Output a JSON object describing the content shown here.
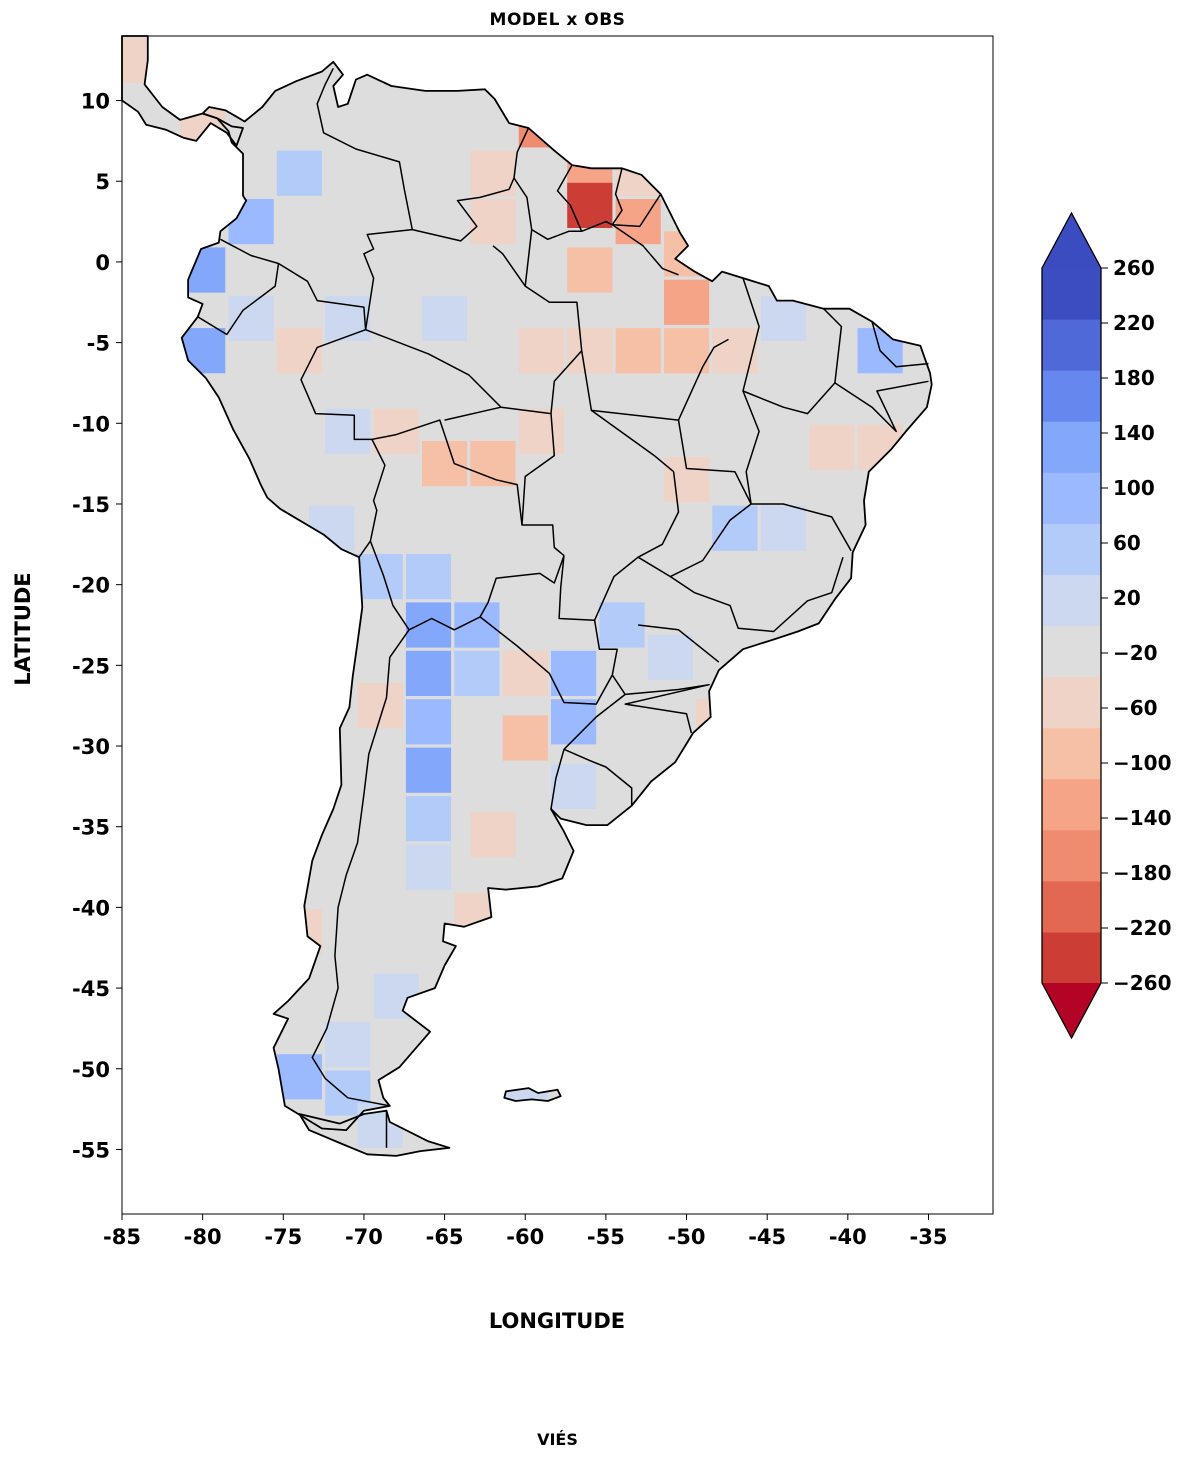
{
  "title": "MODEL x OBS",
  "footer": "VIÉS",
  "chart_data": {
    "type": "heatmap",
    "title": "MODEL x OBS",
    "xlabel": "LONGITUDE",
    "ylabel": "LATITUDE",
    "xlim": [
      -85,
      -31
    ],
    "ylim": [
      -59,
      14
    ],
    "xticks": [
      "-85",
      "-80",
      "-75",
      "-70",
      "-65",
      "-60",
      "-55",
      "-50",
      "-45",
      "-40",
      "-35"
    ],
    "yticks": [
      "10",
      "5",
      "0",
      "-5",
      "-10",
      "-15",
      "-20",
      "-25",
      "-30",
      "-35",
      "-40",
      "-45",
      "-50",
      "-55"
    ],
    "colorbar": {
      "levels": [
        -260,
        -220,
        -180,
        -140,
        -100,
        -60,
        -20,
        20,
        60,
        100,
        140,
        180,
        220,
        260
      ],
      "tick_labels": [
        "−260",
        "−220",
        "−180",
        "−140",
        "−100",
        "−60",
        "−20",
        "20",
        "60",
        "100",
        "140",
        "180",
        "220",
        "260"
      ],
      "colors": [
        "#cc3e35",
        "#e26851",
        "#ef8b6e",
        "#f6a488",
        "#f5c0a6",
        "#eed3c6",
        "#dddddd",
        "#cbd8ef",
        "#b2cbf9",
        "#9ab9ff",
        "#83a7fb",
        "#6687ed",
        "#4f69d9",
        "#3c4dc2"
      ],
      "under_color": "#b40426",
      "over_color": "#3b4cc0",
      "extend": "both"
    },
    "grid_cells": [
      {
        "lon": -68,
        "lat": 11.5,
        "v": 0
      },
      {
        "lon": -65,
        "lat": 11.5,
        "v": 0
      },
      {
        "lon": -62,
        "lat": 11.5,
        "v": 0
      },
      {
        "lon": -59,
        "lat": 11.5,
        "v": 0
      },
      {
        "lon": -59,
        "lat": 8.5,
        "v": -160
      },
      {
        "lon": -56,
        "lat": 5.5,
        "v": -140
      },
      {
        "lon": -53,
        "lat": 5.5,
        "v": -60
      },
      {
        "lon": -56,
        "lat": 3.5,
        "v": -230
      },
      {
        "lon": -53,
        "lat": 2.5,
        "v": -120
      },
      {
        "lon": -50,
        "lat": 0.5,
        "v": -100
      },
      {
        "lon": -50,
        "lat": -2.5,
        "v": -140
      },
      {
        "lon": -47,
        "lat": -2.5,
        "v": 0
      },
      {
        "lon": -44,
        "lat": -3.5,
        "v": 40
      },
      {
        "lon": -41,
        "lat": -3.5,
        "v": 0
      },
      {
        "lon": -38,
        "lat": -5.5,
        "v": 100
      },
      {
        "lon": -56,
        "lat": -0.5,
        "v": -80
      },
      {
        "lon": -62,
        "lat": 5.5,
        "v": -60
      },
      {
        "lon": -62,
        "lat": 2.5,
        "v": -40
      },
      {
        "lon": -65,
        "lat": 5.5,
        "v": 0
      },
      {
        "lon": -68,
        "lat": 5.5,
        "v": 0
      },
      {
        "lon": -71,
        "lat": 5.5,
        "v": 0
      },
      {
        "lon": -74,
        "lat": 5.5,
        "v": 80
      },
      {
        "lon": -77,
        "lat": 2.5,
        "v": 110
      },
      {
        "lon": -80,
        "lat": -0.5,
        "v": 140
      },
      {
        "lon": -80,
        "lat": -5.5,
        "v": 160
      },
      {
        "lon": -77,
        "lat": -3.5,
        "v": 40
      },
      {
        "lon": -74,
        "lat": -5.5,
        "v": -40
      },
      {
        "lon": -71,
        "lat": -3.5,
        "v": 40
      },
      {
        "lon": -68,
        "lat": -5.5,
        "v": 0
      },
      {
        "lon": -65,
        "lat": -3.5,
        "v": 40
      },
      {
        "lon": -62,
        "lat": -5.5,
        "v": 0
      },
      {
        "lon": -59,
        "lat": -5.5,
        "v": -40
      },
      {
        "lon": -56,
        "lat": -5.5,
        "v": -40
      },
      {
        "lon": -53,
        "lat": -5.5,
        "v": -80
      },
      {
        "lon": -50,
        "lat": -5.5,
        "v": -80
      },
      {
        "lon": -47,
        "lat": -5.5,
        "v": -40
      },
      {
        "lon": -74,
        "lat": -10.5,
        "v": 0
      },
      {
        "lon": -71,
        "lat": -10.5,
        "v": 40
      },
      {
        "lon": -68,
        "lat": -10.5,
        "v": -40
      },
      {
        "lon": -65,
        "lat": -12.5,
        "v": -80
      },
      {
        "lon": -62,
        "lat": -12.5,
        "v": -80
      },
      {
        "lon": -59,
        "lat": -10.5,
        "v": -40
      },
      {
        "lon": -56,
        "lat": -10.5,
        "v": 0
      },
      {
        "lon": -53,
        "lat": -10.5,
        "v": 0
      },
      {
        "lon": -50,
        "lat": -10.5,
        "v": 0
      },
      {
        "lon": -47,
        "lat": -10.5,
        "v": 0
      },
      {
        "lon": -44,
        "lat": -10.5,
        "v": 0
      },
      {
        "lon": -41,
        "lat": -11.5,
        "v": -40
      },
      {
        "lon": -38,
        "lat": -11.5,
        "v": -40
      },
      {
        "lon": -50,
        "lat": -13.5,
        "v": -40
      },
      {
        "lon": -47,
        "lat": -16.5,
        "v": 60
      },
      {
        "lon": -44,
        "lat": -16.5,
        "v": 40
      },
      {
        "lon": -41,
        "lat": -16.5,
        "v": 0
      },
      {
        "lon": -72,
        "lat": -16.5,
        "v": 40
      },
      {
        "lon": -69,
        "lat": -19.5,
        "v": 60
      },
      {
        "lon": -66,
        "lat": -19.5,
        "v": 80
      },
      {
        "lon": -66,
        "lat": -22.5,
        "v": 140
      },
      {
        "lon": -66,
        "lat": -25.5,
        "v": 160
      },
      {
        "lon": -66,
        "lat": -28.5,
        "v": 120
      },
      {
        "lon": -66,
        "lat": -31.5,
        "v": 160
      },
      {
        "lon": -66,
        "lat": -34.5,
        "v": 80
      },
      {
        "lon": -66,
        "lat": -37.5,
        "v": 40
      },
      {
        "lon": -63,
        "lat": -22.5,
        "v": 100
      },
      {
        "lon": -63,
        "lat": -25.5,
        "v": 80
      },
      {
        "lon": -60,
        "lat": -25.5,
        "v": -60
      },
      {
        "lon": -60,
        "lat": -29.5,
        "v": -80
      },
      {
        "lon": -57,
        "lat": -25.5,
        "v": 120
      },
      {
        "lon": -57,
        "lat": -28.5,
        "v": 120
      },
      {
        "lon": -54,
        "lat": -22.5,
        "v": 80
      },
      {
        "lon": -51,
        "lat": -24.5,
        "v": 40
      },
      {
        "lon": -48,
        "lat": -28.5,
        "v": -40
      },
      {
        "lon": -54,
        "lat": -31.5,
        "v": 0
      },
      {
        "lon": -57,
        "lat": -32.5,
        "v": 40
      },
      {
        "lon": -62,
        "lat": -35.5,
        "v": -40
      },
      {
        "lon": -63,
        "lat": -40.5,
        "v": -40
      },
      {
        "lon": -69,
        "lat": -27.5,
        "v": -40
      },
      {
        "lon": -70,
        "lat": -34.5,
        "v": 0
      },
      {
        "lon": -69,
        "lat": -40.5,
        "v": 0
      },
      {
        "lon": -68,
        "lat": -45.5,
        "v": 40
      },
      {
        "lon": -71,
        "lat": -48.5,
        "v": 40
      },
      {
        "lon": -71,
        "lat": -51.5,
        "v": 80
      },
      {
        "lon": -74,
        "lat": -50.5,
        "v": 120
      },
      {
        "lon": -74,
        "lat": -41.5,
        "v": -40
      },
      {
        "lon": -69,
        "lat": -53.5,
        "v": 40
      },
      {
        "lon": -84,
        "lat": 12.5,
        "v": -60
      },
      {
        "lon": -80,
        "lat": 8.5,
        "v": -40
      },
      {
        "lon": -60,
        "lat": -51.5,
        "v": 40
      }
    ]
  }
}
